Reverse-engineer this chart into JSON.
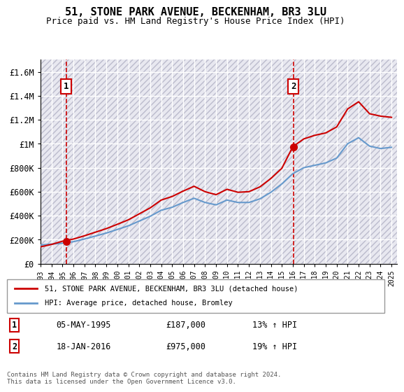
{
  "title": "51, STONE PARK AVENUE, BECKENHAM, BR3 3LU",
  "subtitle": "Price paid vs. HM Land Registry's House Price Index (HPI)",
  "xlabel": "",
  "ylabel": "",
  "background_color": "#ffffff",
  "plot_bg_color": "#e8e8f0",
  "hatch_color": "#ccccdd",
  "grid_color": "#ffffff",
  "sale1_date": 1995.35,
  "sale1_price": 187000,
  "sale2_date": 2016.05,
  "sale2_price": 975000,
  "vline1_date": 1995.35,
  "vline2_date": 2016.05,
  "label1_text": "1",
  "label2_text": "2",
  "legend_line1": "51, STONE PARK AVENUE, BECKENHAM, BR3 3LU (detached house)",
  "legend_line2": "HPI: Average price, detached house, Bromley",
  "table_row1": [
    "1",
    "05-MAY-1995",
    "£187,000",
    "13% ↑ HPI"
  ],
  "table_row2": [
    "2",
    "18-JAN-2016",
    "£975,000",
    "19% ↑ HPI"
  ],
  "footer": "Contains HM Land Registry data © Crown copyright and database right 2024.\nThis data is licensed under the Open Government Licence v3.0.",
  "line_color_red": "#cc0000",
  "line_color_blue": "#6699cc",
  "ylim_max": 1700000,
  "xlim_min": 1993,
  "xlim_max": 2025.5
}
